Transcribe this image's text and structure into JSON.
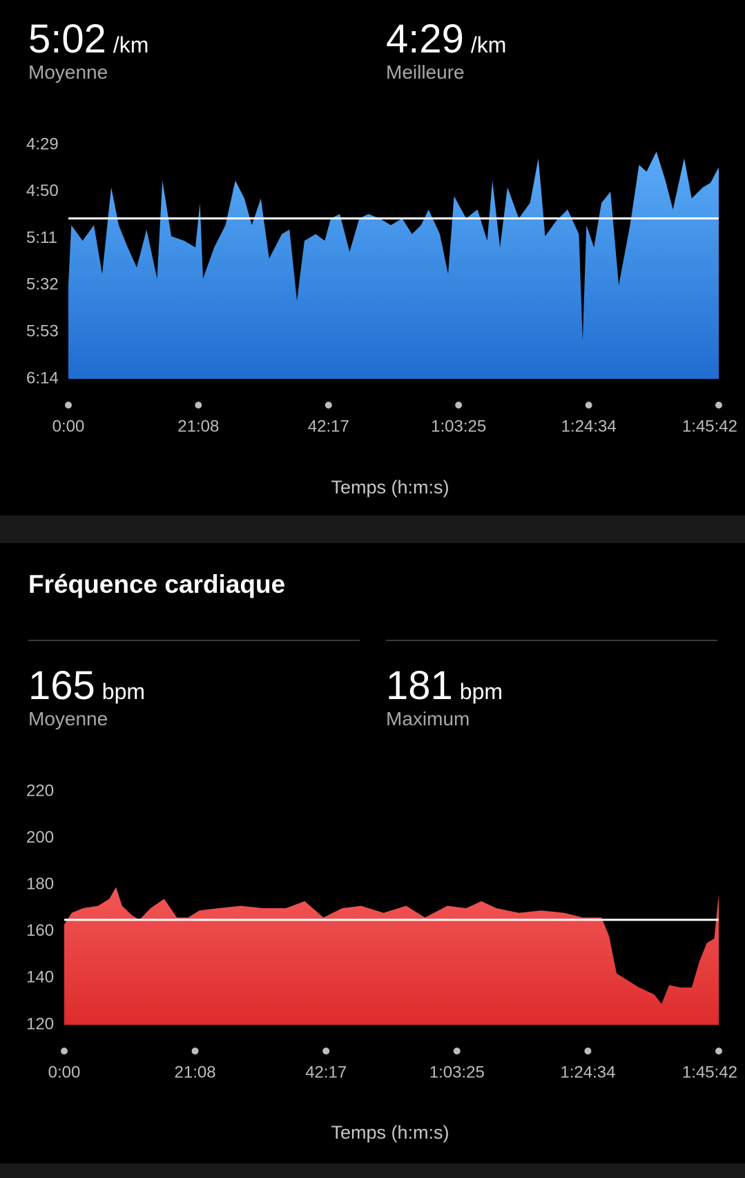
{
  "chart_data": [
    {
      "type": "area",
      "stats": [
        {
          "value": 302,
          "label": "5:02",
          "unit": "/km",
          "name": "Moyenne"
        },
        {
          "value": 269,
          "label": "4:29",
          "unit": "/km",
          "name": "Meilleure"
        }
      ],
      "x_label": "Temps (h:m:s)",
      "x": [
        0,
        29,
        139,
        249,
        330,
        418,
        491,
        579,
        667,
        763,
        865,
        917,
        1004,
        1129,
        1239,
        1283,
        1313,
        1422,
        1532,
        1628,
        1716,
        1789,
        1877,
        1958,
        2082,
        2156,
        2229,
        2302,
        2412,
        2500,
        2559,
        2647,
        2742,
        2837,
        2925,
        3035,
        3145,
        3255,
        3351,
        3439,
        3512,
        3622,
        3703,
        3761,
        3879,
        3989,
        4084,
        4135,
        4209,
        4282,
        4392,
        4502,
        4583,
        4649,
        4758,
        4868,
        4978,
        5015,
        5052,
        5125,
        5198,
        5286,
        5367,
        5477,
        5565,
        5638,
        5734,
        5822,
        5895,
        6005,
        6078,
        6188,
        6262,
        6342
      ],
      "values": [
        332,
        305,
        312,
        305,
        327,
        288,
        305,
        315,
        324,
        307,
        329,
        285,
        310,
        312,
        315,
        295,
        329,
        315,
        305,
        285,
        293,
        305,
        293,
        320,
        309,
        307,
        339,
        312,
        309,
        312,
        302,
        300,
        317,
        302,
        300,
        302,
        305,
        302,
        309,
        305,
        298,
        309,
        327,
        292,
        302,
        298,
        312,
        285,
        315,
        288,
        302,
        295,
        275,
        310,
        303,
        298,
        309,
        357,
        305,
        315,
        295,
        290,
        332,
        305,
        278,
        281,
        272,
        285,
        298,
        275,
        293,
        288,
        286,
        279
      ],
      "gradient": [
        "#5aabf8",
        "#1f6dd0"
      ],
      "reference_color": "#ffffff",
      "xlim": [
        0,
        6342
      ],
      "xticks": [
        {
          "value": 0,
          "label": "0:00"
        },
        {
          "value": 1268,
          "label": "21:08"
        },
        {
          "value": 2537,
          "label": "42:17"
        },
        {
          "value": 3805,
          "label": "1:03:25"
        },
        {
          "value": 5074,
          "label": "1:24:34"
        },
        {
          "value": 6342,
          "label": "1:45:42"
        }
      ],
      "ylim": [
        374,
        269
      ],
      "yticks": [
        {
          "value": 269,
          "label": "4:29"
        },
        {
          "value": 290,
          "label": "4:50"
        },
        {
          "value": 311,
          "label": "5:11"
        },
        {
          "value": 332,
          "label": "5:32"
        },
        {
          "value": 353,
          "label": "5:53"
        },
        {
          "value": 374,
          "label": "6:14"
        }
      ]
    },
    {
      "type": "area",
      "title": "Fréquence cardiaque",
      "stats": [
        {
          "value": 165,
          "unit": "bpm",
          "name": "Moyenne"
        },
        {
          "value": 181,
          "unit": "bpm",
          "name": "Maximum"
        }
      ],
      "x_label": "Temps (h:m:s)",
      "x": [
        0,
        73,
        182,
        328,
        437,
        502,
        561,
        655,
        728,
        837,
        968,
        1092,
        1201,
        1310,
        1493,
        1711,
        1929,
        2148,
        2330,
        2512,
        2694,
        2876,
        3094,
        3313,
        3495,
        3713,
        3895,
        4041,
        4187,
        4405,
        4623,
        4842,
        5024,
        5206,
        5279,
        5352,
        5461,
        5570,
        5716,
        5788,
        5861,
        5970,
        6080,
        6153,
        6225,
        6298,
        6342
      ],
      "values": [
        163,
        168,
        170,
        171,
        174,
        179,
        171,
        167,
        165,
        170,
        174,
        166,
        166,
        169,
        170,
        171,
        170,
        170,
        173,
        166,
        170,
        171,
        168,
        171,
        166,
        171,
        170,
        173,
        170,
        168,
        169,
        168,
        166,
        166,
        158,
        142,
        139,
        136,
        133,
        129,
        137,
        136,
        136,
        147,
        155,
        157,
        176
      ],
      "gradient": [
        "#f25656",
        "#de2c2c"
      ],
      "reference_color": "#ffffff",
      "xlim": [
        0,
        6342
      ],
      "xticks": [
        {
          "value": 0,
          "label": "0:00"
        },
        {
          "value": 1268,
          "label": "21:08"
        },
        {
          "value": 2537,
          "label": "42:17"
        },
        {
          "value": 3805,
          "label": "1:03:25"
        },
        {
          "value": 5074,
          "label": "1:24:34"
        },
        {
          "value": 6342,
          "label": "1:45:42"
        }
      ],
      "ylim": [
        120,
        220
      ],
      "yticks": [
        120,
        140,
        160,
        180,
        200,
        220
      ]
    }
  ]
}
